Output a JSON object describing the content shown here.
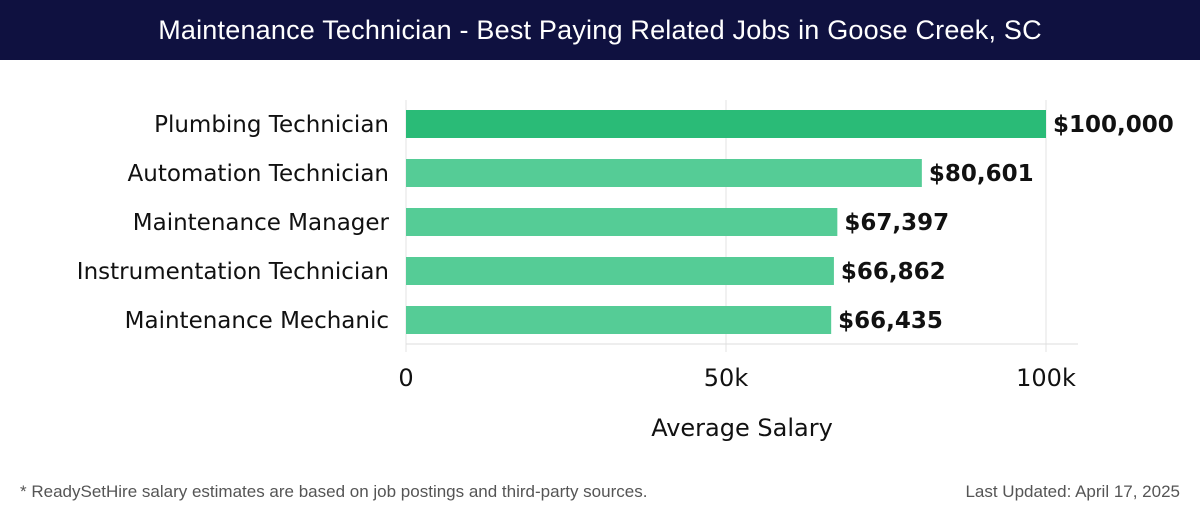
{
  "header": {
    "title": "Maintenance Technician - Best Paying Related Jobs in Goose Creek, SC"
  },
  "chart_data": {
    "type": "bar",
    "orientation": "horizontal",
    "categories": [
      "Plumbing Technician",
      "Automation Technician",
      "Maintenance Manager",
      "Instrumentation Technician",
      "Maintenance Mechanic"
    ],
    "values": [
      100000,
      80601,
      67397,
      66862,
      66435
    ],
    "value_labels": [
      "$100,000",
      "$80,601",
      "$67,397",
      "$66,862",
      "$66,435"
    ],
    "xlabel": "Average Salary",
    "ylabel": "",
    "xlim": [
      0,
      105000
    ],
    "x_ticks": [
      0,
      50000,
      100000
    ],
    "x_tick_labels": [
      "0",
      "50k",
      "100k"
    ],
    "grid": "vertical",
    "colors": {
      "top_bar": "#2abb77",
      "bars": "#55cc96",
      "grid": "#e3e3e3"
    }
  },
  "footer": {
    "note": "* ReadySetHire salary estimates are based on job postings and third-party sources.",
    "updated": "Last Updated: April 17, 2025"
  }
}
